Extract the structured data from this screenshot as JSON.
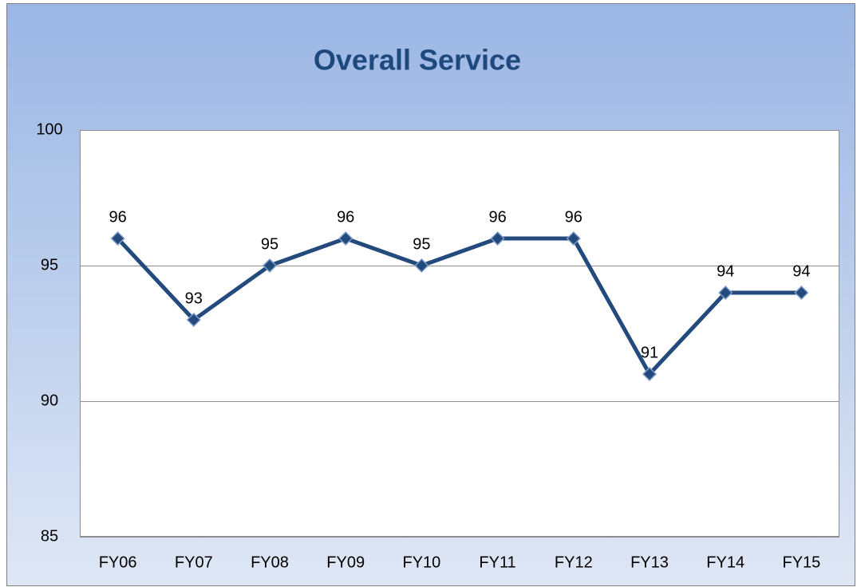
{
  "chart_data": {
    "type": "line",
    "title": "Overall Service",
    "categories": [
      "FY06",
      "FY07",
      "FY08",
      "FY09",
      "FY10",
      "FY11",
      "FY12",
      "FY13",
      "FY14",
      "FY15"
    ],
    "values": [
      96,
      93,
      95,
      96,
      95,
      96,
      96,
      91,
      94,
      94
    ],
    "color": "#234a7c",
    "ylim": [
      85,
      100
    ],
    "yticks": [
      85,
      90,
      95,
      100
    ],
    "grid": true
  }
}
